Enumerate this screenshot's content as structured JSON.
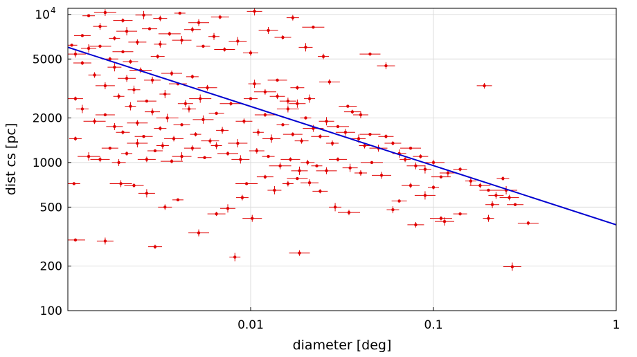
{
  "chart_data": {
    "type": "scatter",
    "title": "",
    "xlabel": "diameter [deg]",
    "ylabel": "dist cs [pc]",
    "xscale": "log",
    "yscale": "log",
    "xlim": [
      0.001,
      1
    ],
    "ylim": [
      100,
      11000
    ],
    "grid": true,
    "x_ticks": [
      {
        "value": 0.01,
        "label": "0.01"
      },
      {
        "value": 0.1,
        "label": "0.1"
      },
      {
        "value": 1,
        "label": "1"
      }
    ],
    "y_ticks": [
      {
        "value": 100,
        "label": "100"
      },
      {
        "value": 200,
        "label": "200"
      },
      {
        "value": 500,
        "label": "500"
      },
      {
        "value": 1000,
        "label": "1000"
      },
      {
        "value": 2000,
        "label": "2000"
      },
      {
        "value": 5000,
        "label": "5000"
      },
      {
        "value": 10000,
        "label": "10",
        "exponent": "4"
      }
    ],
    "colors": {
      "points": "#e00000",
      "fit": "#0000d0",
      "grid": "#dcdcdc"
    },
    "fit_line": {
      "x": [
        0.001,
        1
      ],
      "y": [
        6000,
        380
      ]
    },
    "points": [
      {
        "x": 0.00105,
        "y": 6200
      },
      {
        "x": 0.0011,
        "y": 5400
      },
      {
        "x": 0.0012,
        "y": 4700
      },
      {
        "x": 0.0013,
        "y": 5900
      },
      {
        "x": 0.0014,
        "y": 3900
      },
      {
        "x": 0.0015,
        "y": 6100
      },
      {
        "x": 0.0016,
        "y": 3300
      },
      {
        "x": 0.0017,
        "y": 5000
      },
      {
        "x": 0.0018,
        "y": 4400
      },
      {
        "x": 0.0019,
        "y": 2800
      },
      {
        "x": 0.002,
        "y": 5600
      },
      {
        "x": 0.0021,
        "y": 3700
      },
      {
        "x": 0.0022,
        "y": 4800
      },
      {
        "x": 0.0023,
        "y": 3100
      },
      {
        "x": 0.0025,
        "y": 4200
      },
      {
        "x": 0.0027,
        "y": 2600
      },
      {
        "x": 0.0029,
        "y": 3600
      },
      {
        "x": 0.0031,
        "y": 5200
      },
      {
        "x": 0.0034,
        "y": 2900
      },
      {
        "x": 0.0037,
        "y": 4000
      },
      {
        "x": 0.004,
        "y": 3400
      },
      {
        "x": 0.0044,
        "y": 2500
      },
      {
        "x": 0.0048,
        "y": 3800
      },
      {
        "x": 0.0053,
        "y": 2700
      },
      {
        "x": 0.0058,
        "y": 3200
      },
      {
        "x": 0.0012,
        "y": 7200
      },
      {
        "x": 0.0015,
        "y": 8300
      },
      {
        "x": 0.0018,
        "y": 6900
      },
      {
        "x": 0.0021,
        "y": 7700
      },
      {
        "x": 0.0024,
        "y": 6500
      },
      {
        "x": 0.0028,
        "y": 8000
      },
      {
        "x": 0.0032,
        "y": 6300
      },
      {
        "x": 0.0036,
        "y": 7400
      },
      {
        "x": 0.0042,
        "y": 6700
      },
      {
        "x": 0.0048,
        "y": 7900
      },
      {
        "x": 0.0055,
        "y": 6100
      },
      {
        "x": 0.0063,
        "y": 7100
      },
      {
        "x": 0.0072,
        "y": 5800
      },
      {
        "x": 0.0085,
        "y": 6600
      },
      {
        "x": 0.01,
        "y": 5500
      },
      {
        "x": 0.0013,
        "y": 9800
      },
      {
        "x": 0.0016,
        "y": 10300
      },
      {
        "x": 0.002,
        "y": 9100
      },
      {
        "x": 0.0026,
        "y": 9900
      },
      {
        "x": 0.0032,
        "y": 9400
      },
      {
        "x": 0.0041,
        "y": 10200
      },
      {
        "x": 0.0052,
        "y": 8800
      },
      {
        "x": 0.0068,
        "y": 9600
      },
      {
        "x": 0.0105,
        "y": 10500
      },
      {
        "x": 0.017,
        "y": 9500
      },
      {
        "x": 0.022,
        "y": 8200
      },
      {
        "x": 0.0125,
        "y": 7800
      },
      {
        "x": 0.015,
        "y": 7000
      },
      {
        "x": 0.02,
        "y": 6000
      },
      {
        "x": 0.025,
        "y": 5200
      },
      {
        "x": 0.045,
        "y": 5400
      },
      {
        "x": 0.055,
        "y": 4500
      },
      {
        "x": 0.0011,
        "y": 2700
      },
      {
        "x": 0.0012,
        "y": 2300
      },
      {
        "x": 0.0014,
        "y": 1900
      },
      {
        "x": 0.0016,
        "y": 2100
      },
      {
        "x": 0.0018,
        "y": 1750
      },
      {
        "x": 0.002,
        "y": 1600
      },
      {
        "x": 0.0022,
        "y": 2400
      },
      {
        "x": 0.0024,
        "y": 1850
      },
      {
        "x": 0.0026,
        "y": 1500
      },
      {
        "x": 0.0029,
        "y": 2200
      },
      {
        "x": 0.0032,
        "y": 1700
      },
      {
        "x": 0.0035,
        "y": 2000
      },
      {
        "x": 0.0038,
        "y": 1450
      },
      {
        "x": 0.0042,
        "y": 1800
      },
      {
        "x": 0.0046,
        "y": 2300
      },
      {
        "x": 0.005,
        "y": 1550
      },
      {
        "x": 0.0055,
        "y": 1950
      },
      {
        "x": 0.006,
        "y": 1400
      },
      {
        "x": 0.0065,
        "y": 2150
      },
      {
        "x": 0.007,
        "y": 1650
      },
      {
        "x": 0.0078,
        "y": 2500
      },
      {
        "x": 0.0085,
        "y": 1350
      },
      {
        "x": 0.0092,
        "y": 1900
      },
      {
        "x": 0.01,
        "y": 2700
      },
      {
        "x": 0.011,
        "y": 1600
      },
      {
        "x": 0.012,
        "y": 2100
      },
      {
        "x": 0.013,
        "y": 1450
      },
      {
        "x": 0.014,
        "y": 2800
      },
      {
        "x": 0.015,
        "y": 1800
      },
      {
        "x": 0.016,
        "y": 2300
      },
      {
        "x": 0.017,
        "y": 1550
      },
      {
        "x": 0.018,
        "y": 2500
      },
      {
        "x": 0.019,
        "y": 1400
      },
      {
        "x": 0.02,
        "y": 2000
      },
      {
        "x": 0.022,
        "y": 1700
      },
      {
        "x": 0.024,
        "y": 1500
      },
      {
        "x": 0.026,
        "y": 1900
      },
      {
        "x": 0.028,
        "y": 1350
      },
      {
        "x": 0.03,
        "y": 1750
      },
      {
        "x": 0.033,
        "y": 1600
      },
      {
        "x": 0.036,
        "y": 2200
      },
      {
        "x": 0.039,
        "y": 1450
      },
      {
        "x": 0.042,
        "y": 1300
      },
      {
        "x": 0.045,
        "y": 1550
      },
      {
        "x": 0.05,
        "y": 1250
      },
      {
        "x": 0.055,
        "y": 1500
      },
      {
        "x": 0.0105,
        "y": 3400
      },
      {
        "x": 0.012,
        "y": 3000
      },
      {
        "x": 0.014,
        "y": 3600
      },
      {
        "x": 0.016,
        "y": 2600
      },
      {
        "x": 0.018,
        "y": 3200
      },
      {
        "x": 0.021,
        "y": 2700
      },
      {
        "x": 0.027,
        "y": 3500
      },
      {
        "x": 0.034,
        "y": 2400
      },
      {
        "x": 0.04,
        "y": 2100
      },
      {
        "x": 0.0011,
        "y": 1450
      },
      {
        "x": 0.0013,
        "y": 1100
      },
      {
        "x": 0.0015,
        "y": 1050
      },
      {
        "x": 0.0017,
        "y": 1250
      },
      {
        "x": 0.0019,
        "y": 1000
      },
      {
        "x": 0.0021,
        "y": 1150
      },
      {
        "x": 0.0024,
        "y": 1350
      },
      {
        "x": 0.0027,
        "y": 1050
      },
      {
        "x": 0.003,
        "y": 1200
      },
      {
        "x": 0.0033,
        "y": 1300
      },
      {
        "x": 0.0037,
        "y": 1020
      },
      {
        "x": 0.0042,
        "y": 1100
      },
      {
        "x": 0.0048,
        "y": 1250
      },
      {
        "x": 0.0056,
        "y": 1080
      },
      {
        "x": 0.0065,
        "y": 1300
      },
      {
        "x": 0.0075,
        "y": 1150
      },
      {
        "x": 0.0088,
        "y": 1050
      },
      {
        "x": 0.0108,
        "y": 1200
      },
      {
        "x": 0.0125,
        "y": 1100
      },
      {
        "x": 0.0145,
        "y": 950
      },
      {
        "x": 0.0165,
        "y": 1050
      },
      {
        "x": 0.0185,
        "y": 880
      },
      {
        "x": 0.0205,
        "y": 1000
      },
      {
        "x": 0.023,
        "y": 950
      },
      {
        "x": 0.026,
        "y": 880
      },
      {
        "x": 0.03,
        "y": 1050
      },
      {
        "x": 0.035,
        "y": 920
      },
      {
        "x": 0.04,
        "y": 850
      },
      {
        "x": 0.046,
        "y": 1000
      },
      {
        "x": 0.052,
        "y": 820
      },
      {
        "x": 0.06,
        "y": 1350
      },
      {
        "x": 0.065,
        "y": 1150
      },
      {
        "x": 0.07,
        "y": 1050
      },
      {
        "x": 0.075,
        "y": 1250
      },
      {
        "x": 0.08,
        "y": 950
      },
      {
        "x": 0.085,
        "y": 1100
      },
      {
        "x": 0.09,
        "y": 900
      },
      {
        "x": 0.1,
        "y": 1000
      },
      {
        "x": 0.11,
        "y": 800
      },
      {
        "x": 0.12,
        "y": 850
      },
      {
        "x": 0.14,
        "y": 900
      },
      {
        "x": 0.16,
        "y": 750
      },
      {
        "x": 0.18,
        "y": 700
      },
      {
        "x": 0.2,
        "y": 650
      },
      {
        "x": 0.22,
        "y": 600
      },
      {
        "x": 0.24,
        "y": 780
      },
      {
        "x": 0.25,
        "y": 650
      },
      {
        "x": 0.26,
        "y": 580
      },
      {
        "x": 0.28,
        "y": 520
      },
      {
        "x": 0.21,
        "y": 520
      },
      {
        "x": 0.1,
        "y": 680
      },
      {
        "x": 0.09,
        "y": 600
      },
      {
        "x": 0.075,
        "y": 700
      },
      {
        "x": 0.065,
        "y": 550
      },
      {
        "x": 0.06,
        "y": 480
      },
      {
        "x": 0.11,
        "y": 420
      },
      {
        "x": 0.115,
        "y": 400
      },
      {
        "x": 0.08,
        "y": 380
      },
      {
        "x": 0.14,
        "y": 450
      },
      {
        "x": 0.2,
        "y": 420
      },
      {
        "x": 0.33,
        "y": 390
      },
      {
        "x": 0.27,
        "y": 198
      },
      {
        "x": 0.19,
        "y": 3300
      },
      {
        "x": 0.00108,
        "y": 720
      },
      {
        "x": 0.00195,
        "y": 720
      },
      {
        "x": 0.0023,
        "y": 700
      },
      {
        "x": 0.0027,
        "y": 620
      },
      {
        "x": 0.0034,
        "y": 500
      },
      {
        "x": 0.004,
        "y": 560
      },
      {
        "x": 0.0052,
        "y": 335
      },
      {
        "x": 0.0065,
        "y": 450
      },
      {
        "x": 0.0075,
        "y": 490
      },
      {
        "x": 0.009,
        "y": 580
      },
      {
        "x": 0.0095,
        "y": 720
      },
      {
        "x": 0.0102,
        "y": 420
      },
      {
        "x": 0.012,
        "y": 800
      },
      {
        "x": 0.0135,
        "y": 650
      },
      {
        "x": 0.016,
        "y": 720
      },
      {
        "x": 0.018,
        "y": 780
      },
      {
        "x": 0.021,
        "y": 730
      },
      {
        "x": 0.024,
        "y": 640
      },
      {
        "x": 0.029,
        "y": 500
      },
      {
        "x": 0.0345,
        "y": 460
      },
      {
        "x": 0.0011,
        "y": 300
      },
      {
        "x": 0.0016,
        "y": 295
      },
      {
        "x": 0.003,
        "y": 270
      },
      {
        "x": 0.0082,
        "y": 230
      },
      {
        "x": 0.0185,
        "y": 245
      }
    ]
  }
}
